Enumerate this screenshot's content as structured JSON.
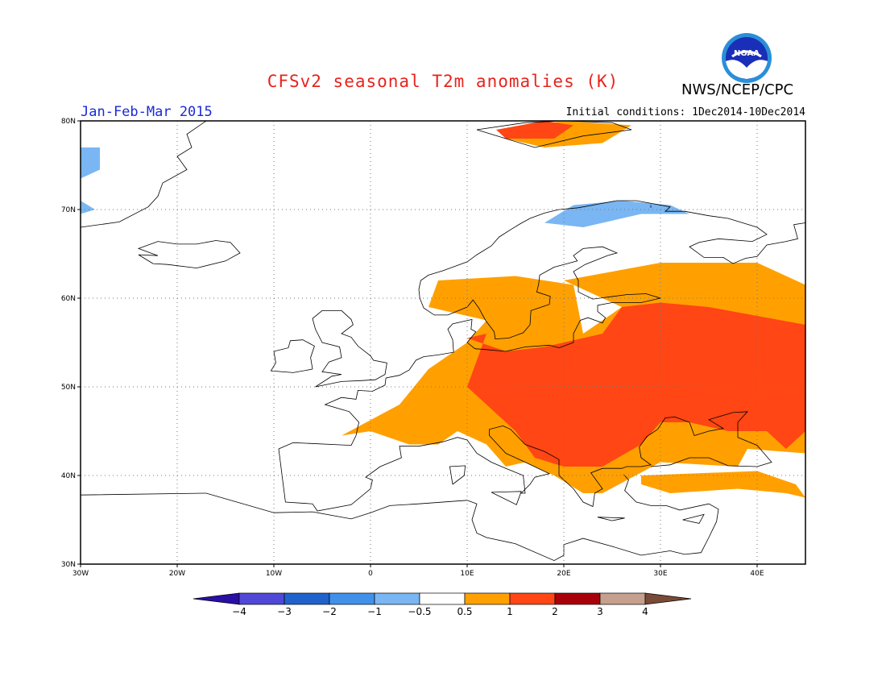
{
  "title": "CFSv2 seasonal T2m anomalies (K)",
  "period": "Jan-Feb-Mar 2015",
  "agency": "NWS/NCEP/CPC",
  "initial_conditions": "Initial conditions: 1Dec2014-10Dec2014",
  "logo_text": "NOAA",
  "lat_ticks": [
    {
      "v": 80,
      "label": "80N"
    },
    {
      "v": 70,
      "label": "70N"
    },
    {
      "v": 60,
      "label": "60N"
    },
    {
      "v": 50,
      "label": "50N"
    },
    {
      "v": 40,
      "label": "40N"
    },
    {
      "v": 30,
      "label": "30N"
    }
  ],
  "lon_ticks": [
    {
      "v": -30,
      "label": "30W"
    },
    {
      "v": -20,
      "label": "20W"
    },
    {
      "v": -10,
      "label": "10W"
    },
    {
      "v": 0,
      "label": "0"
    },
    {
      "v": 10,
      "label": "10E"
    },
    {
      "v": 20,
      "label": "20E"
    },
    {
      "v": 30,
      "label": "30E"
    },
    {
      "v": 40,
      "label": "40E"
    }
  ],
  "map_extent": {
    "lon": [
      -30,
      45
    ],
    "lat": [
      30,
      80
    ]
  },
  "colorbar": {
    "colors": [
      "#2a0fa6",
      "#5048d6",
      "#1f62cc",
      "#4191ea",
      "#79b6f3",
      "#ffffff",
      "#ffa000",
      "#ff4614",
      "#a8000a",
      "#c6a08e",
      "#7a4a38"
    ],
    "labels": [
      "-4",
      "-3",
      "-2",
      "-1",
      "-0.5",
      "0.5",
      "1",
      "2",
      "3",
      "4"
    ]
  },
  "anomaly_regions": [
    {
      "level": "0.5 to 1",
      "color": "#ffa000",
      "polygon": [
        [
          -3,
          44.5
        ],
        [
          3,
          48
        ],
        [
          6,
          52
        ],
        [
          10,
          55
        ],
        [
          12,
          57.5
        ],
        [
          6,
          59
        ],
        [
          7,
          62
        ],
        [
          15,
          62.5
        ],
        [
          21,
          61.5
        ],
        [
          22,
          56
        ],
        [
          26,
          59
        ],
        [
          21,
          61.5
        ],
        [
          20,
          62
        ],
        [
          30,
          64
        ],
        [
          40,
          64
        ],
        [
          45,
          61.5
        ],
        [
          45,
          42.5
        ],
        [
          39,
          43
        ],
        [
          38,
          41
        ],
        [
          30,
          41.5
        ],
        [
          24,
          38
        ],
        [
          22,
          38
        ],
        [
          19,
          40
        ],
        [
          16,
          41.5
        ],
        [
          14,
          41
        ],
        [
          12,
          43.5
        ],
        [
          9,
          45
        ],
        [
          7,
          43.5
        ],
        [
          4,
          43.5
        ],
        [
          0,
          45
        ],
        [
          -3,
          44.5
        ]
      ]
    },
    {
      "level": "0.5 to 1",
      "color": "#ffa000",
      "polygon": [
        [
          28,
          40
        ],
        [
          40,
          40.5
        ],
        [
          44,
          39
        ],
        [
          45,
          37.5
        ],
        [
          43,
          38
        ],
        [
          38,
          38.5
        ],
        [
          31,
          38
        ],
        [
          28,
          39
        ]
      ]
    },
    {
      "level": "0.5 to 1",
      "color": "#ffa000",
      "polygon": [
        [
          14,
          79
        ],
        [
          20,
          80
        ],
        [
          27,
          79.5
        ],
        [
          24,
          77.5
        ],
        [
          18,
          77
        ],
        [
          14,
          78
        ]
      ]
    },
    {
      "level": "1 to 2",
      "color": "#ff4614",
      "polygon": [
        [
          10,
          55.5
        ],
        [
          12,
          56
        ],
        [
          11,
          53
        ],
        [
          10,
          50
        ],
        [
          13,
          47
        ],
        [
          15,
          45
        ],
        [
          17,
          42
        ],
        [
          20,
          41
        ],
        [
          24,
          41
        ],
        [
          28,
          43.5
        ],
        [
          30,
          46
        ],
        [
          33,
          46
        ],
        [
          37,
          45
        ],
        [
          41,
          45
        ],
        [
          43,
          43
        ],
        [
          45,
          45
        ],
        [
          45,
          57
        ],
        [
          40,
          58
        ],
        [
          35,
          59
        ],
        [
          30,
          59.5
        ],
        [
          26,
          59
        ],
        [
          24,
          56
        ],
        [
          18,
          54.5
        ],
        [
          14,
          54
        ],
        [
          10,
          55.5
        ]
      ]
    },
    {
      "level": "1 to 2",
      "color": "#ff4614",
      "polygon": [
        [
          13,
          79
        ],
        [
          18,
          80
        ],
        [
          21,
          79.5
        ],
        [
          19,
          78
        ],
        [
          14,
          78
        ]
      ]
    },
    {
      "level": "-1 to -0.5",
      "color": "#79b6f3",
      "polygon": [
        [
          18,
          68.5
        ],
        [
          21,
          70.5
        ],
        [
          26,
          71
        ],
        [
          31,
          70.5
        ],
        [
          33,
          69.5
        ],
        [
          28,
          69.5
        ],
        [
          22,
          68
        ],
        [
          18,
          68.5
        ]
      ]
    },
    {
      "level": "-1 to -0.5",
      "color": "#79b6f3",
      "polygon": [
        [
          -30,
          77
        ],
        [
          -28,
          77
        ],
        [
          -28,
          74.5
        ],
        [
          -30,
          73.5
        ]
      ]
    },
    {
      "level": "-1 to -0.5",
      "color": "#79b6f3",
      "polygon": [
        [
          -30,
          71
        ],
        [
          -28.5,
          70
        ],
        [
          -30,
          69.5
        ]
      ]
    }
  ]
}
